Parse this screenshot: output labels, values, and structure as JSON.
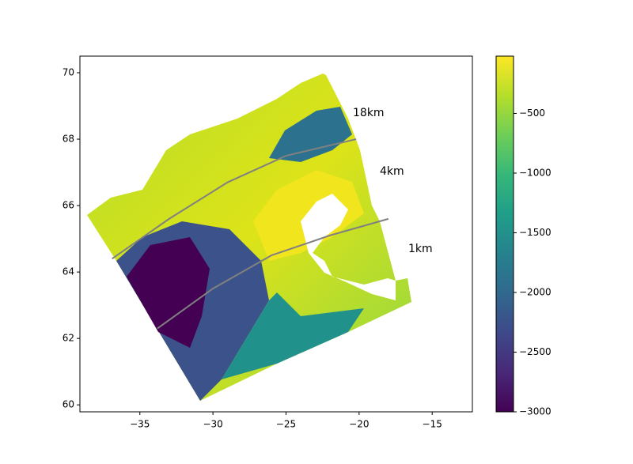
{
  "chart_data": {
    "type": "map",
    "xlim": [
      -39.1,
      -12.25
    ],
    "ylim": [
      59.79,
      70.5
    ],
    "xticks": [
      {
        "value": -35,
        "label": "−35"
      },
      {
        "value": -30,
        "label": "−30"
      },
      {
        "value": -25,
        "label": "−25"
      },
      {
        "value": -20,
        "label": "−20"
      },
      {
        "value": -15,
        "label": "−15"
      }
    ],
    "yticks": [
      60,
      62,
      64,
      66,
      68,
      70
    ],
    "colormap": "viridis",
    "clim": [
      -3000,
      -20
    ],
    "cticks": [
      {
        "value": -500,
        "label": "−500"
      },
      {
        "value": -1000,
        "label": "−1000"
      },
      {
        "value": -1500,
        "label": "−1500"
      },
      {
        "value": -2000,
        "label": "−2000"
      },
      {
        "value": -2500,
        "label": "−2500"
      },
      {
        "value": -3000,
        "label": "−3000"
      }
    ],
    "lines": [
      {
        "color": "#808080",
        "x": [
          -36.9,
          -33,
          -29,
          -25,
          -20.2
        ],
        "y": [
          64.4,
          65.6,
          66.7,
          67.5,
          68.0
        ]
      },
      {
        "color": "#808080",
        "x": [
          -33.8,
          -30,
          -26,
          -22,
          -18
        ],
        "y": [
          62.3,
          63.5,
          64.5,
          65.1,
          65.6
        ]
      }
    ],
    "annotations": [
      "18km",
      "4km",
      "1km"
    ]
  }
}
